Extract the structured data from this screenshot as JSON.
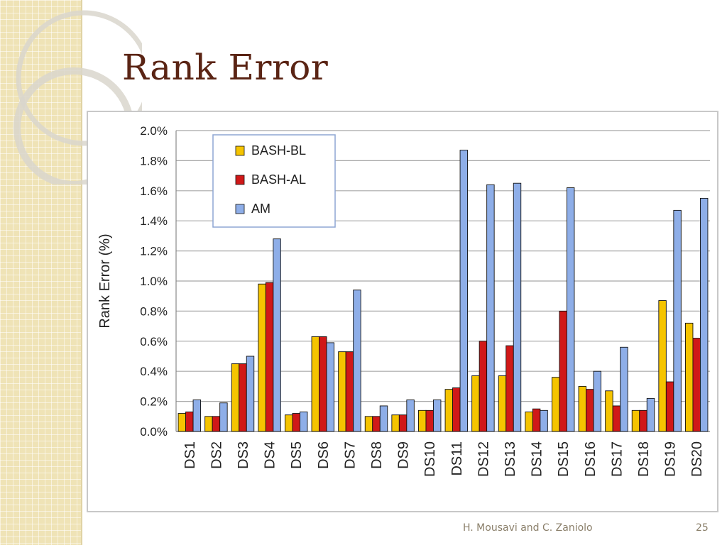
{
  "slide": {
    "title": "Rank Error",
    "footer_author": "H. Mousavi and C. Zaniolo",
    "page_number": "25"
  },
  "colors": {
    "bash_bl": "#f5c400",
    "bash_al": "#d01818",
    "am": "#8eaee8",
    "title": "#5a2414",
    "side_strip": "#efe3b6"
  },
  "chart_data": {
    "type": "bar",
    "title": "",
    "xlabel": "",
    "ylabel": "Rank Error (%)",
    "ylim": [
      0,
      2.0
    ],
    "yticks": [
      "0.0%",
      "0.2%",
      "0.4%",
      "0.6%",
      "0.8%",
      "1.0%",
      "1.2%",
      "1.4%",
      "1.6%",
      "1.8%",
      "2.0%"
    ],
    "grid": true,
    "legend_position": "top-left",
    "categories": [
      "DS1",
      "DS2",
      "DS3",
      "DS4",
      "DS5",
      "DS6",
      "DS7",
      "DS8",
      "DS9",
      "DS10",
      "DS11",
      "DS12",
      "DS13",
      "DS14",
      "DS15",
      "DS16",
      "DS17",
      "DS18",
      "DS19",
      "DS20"
    ],
    "series": [
      {
        "name": "BASH-BL",
        "color": "#f5c400",
        "values": [
          0.12,
          0.1,
          0.45,
          0.98,
          0.11,
          0.63,
          0.53,
          0.1,
          0.11,
          0.14,
          0.28,
          0.37,
          0.37,
          0.13,
          0.36,
          0.3,
          0.27,
          0.14,
          0.87,
          0.72
        ]
      },
      {
        "name": "BASH-AL",
        "color": "#d01818",
        "values": [
          0.13,
          0.1,
          0.45,
          0.99,
          0.12,
          0.63,
          0.53,
          0.1,
          0.11,
          0.14,
          0.29,
          0.6,
          0.57,
          0.15,
          0.8,
          0.28,
          0.17,
          0.14,
          0.33,
          0.62
        ]
      },
      {
        "name": "AM",
        "color": "#8eaee8",
        "values": [
          0.21,
          0.19,
          0.5,
          1.28,
          0.13,
          0.59,
          0.94,
          0.17,
          0.21,
          0.21,
          1.87,
          1.64,
          1.65,
          0.14,
          1.62,
          0.4,
          0.56,
          0.22,
          1.47,
          1.55
        ]
      }
    ]
  }
}
